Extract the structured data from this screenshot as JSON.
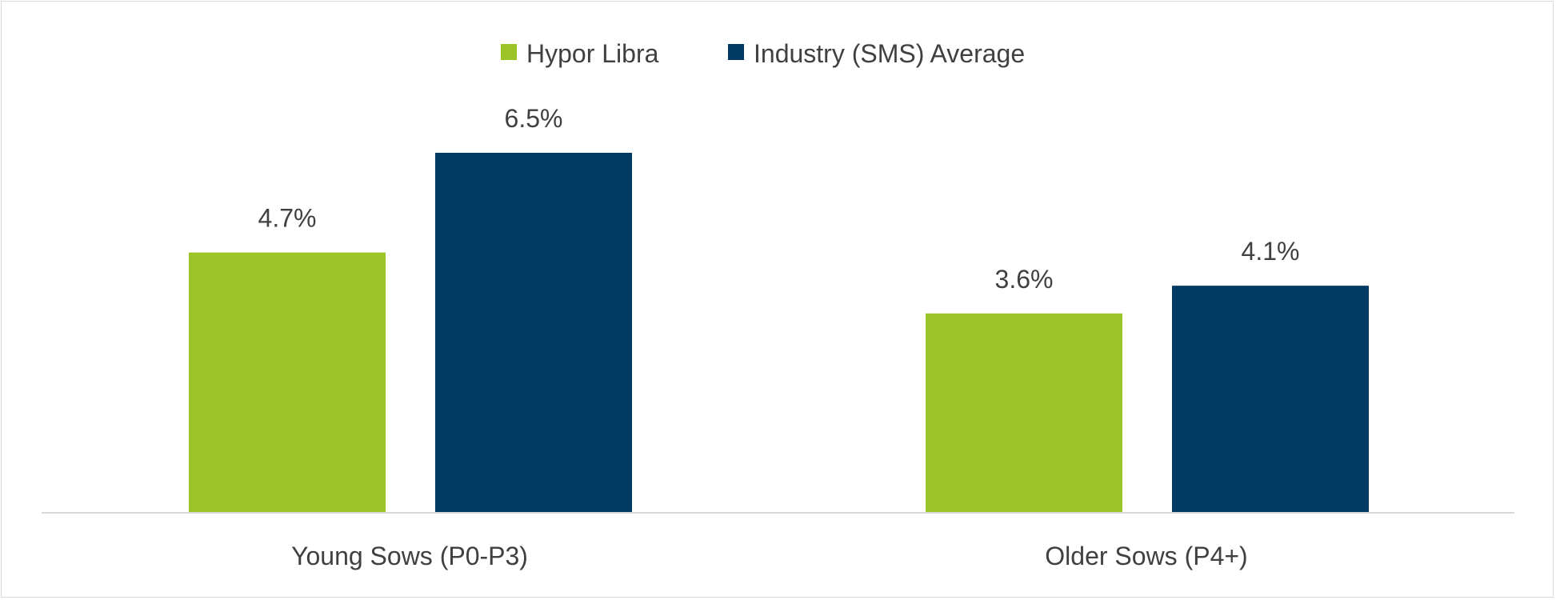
{
  "chart_data": {
    "type": "bar",
    "title": "",
    "xlabel": "",
    "ylabel": "",
    "categories": [
      "Young Sows (P0-P3)",
      "Older Sows (P4+)"
    ],
    "series": [
      {
        "name": "Hypor Libra",
        "color": "#9bc527",
        "values": [
          4.7,
          3.6
        ],
        "labels": [
          "4.7%",
          "3.6%"
        ]
      },
      {
        "name": "Industry (SMS) Average",
        "color": "#003962",
        "values": [
          6.5,
          4.1
        ],
        "labels": [
          "6.5%",
          "4.1%"
        ]
      }
    ],
    "ylim": [
      0,
      6.5
    ],
    "grid": false,
    "legend_position": "top-center",
    "y_axis_visible": false
  }
}
